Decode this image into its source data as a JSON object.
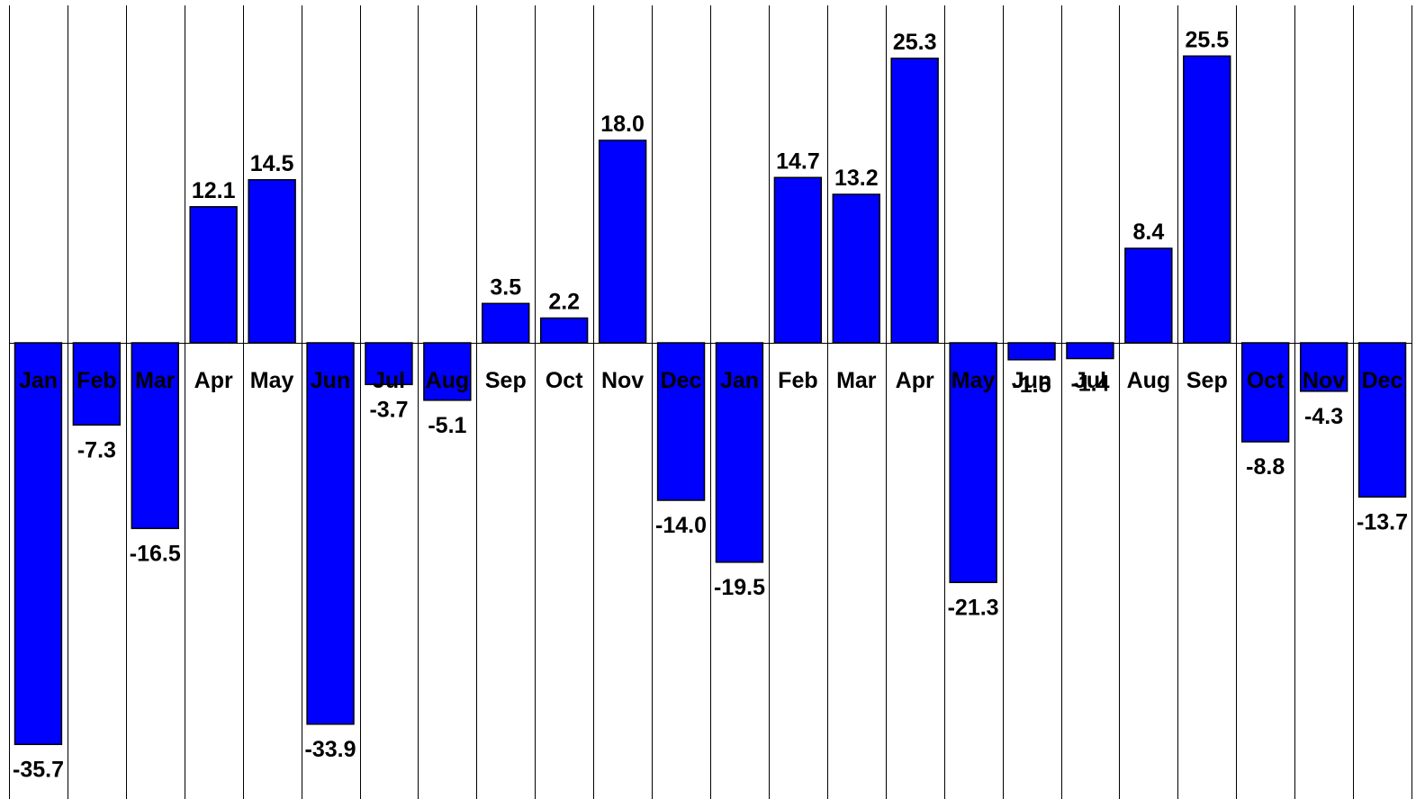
{
  "chart_data": {
    "type": "bar",
    "title": "",
    "xlabel": "",
    "ylabel": "",
    "categories": [
      "Jan",
      "Feb",
      "Mar",
      "Apr",
      "May",
      "Jun",
      "Jul",
      "Aug",
      "Sep",
      "Oct",
      "Nov",
      "Dec",
      "Jan",
      "Feb",
      "Mar",
      "Apr",
      "May",
      "Jun",
      "Jul",
      "Aug",
      "Sep",
      "Oct",
      "Nov",
      "Dec"
    ],
    "values": [
      -35.7,
      -7.3,
      -16.5,
      12.1,
      14.5,
      -33.9,
      -3.7,
      -5.1,
      3.5,
      2.2,
      18.0,
      -14.0,
      -19.5,
      14.7,
      13.2,
      25.3,
      -21.3,
      -1.5,
      -1.4,
      8.4,
      25.5,
      -8.8,
      -4.3,
      -13.7
    ],
    "value_labels": [
      "-35.7",
      "-7.3",
      "-16.5",
      "12.1",
      "14.5",
      "-33.9",
      "-3.7",
      "-5.1",
      "3.5",
      "2.2",
      "18.0",
      "-14.0",
      "-19.5",
      "14.7",
      "13.2",
      "25.3",
      "-21.3",
      "-1.5",
      "-1.4",
      "8.4",
      "25.5",
      "-8.8",
      "-4.3",
      "-13.7"
    ],
    "ylim": [
      -39.9,
      30.0
    ],
    "bar_color": "#0000ff",
    "grid": true,
    "legend": "none",
    "show_axes": false
  }
}
